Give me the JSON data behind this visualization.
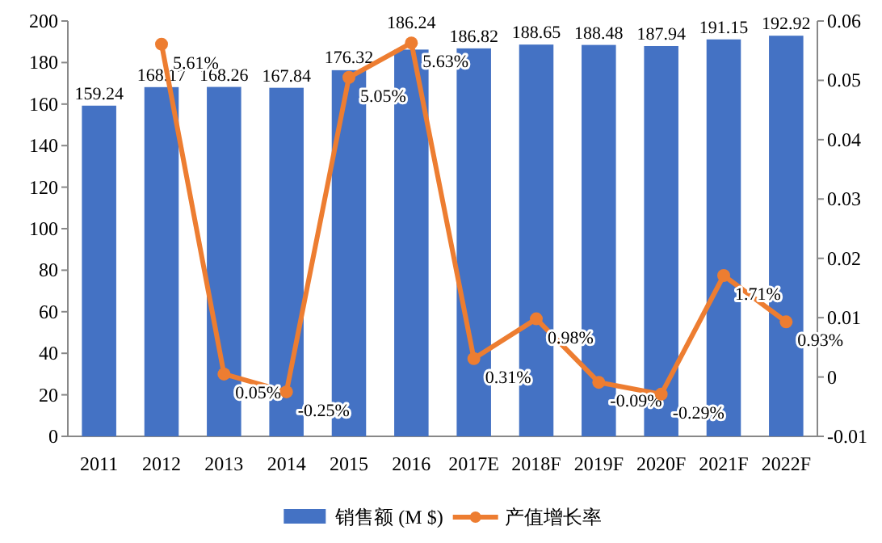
{
  "chart_data": {
    "type": "bar",
    "categories": [
      "2011",
      "2012",
      "2013",
      "2014",
      "2015",
      "2016",
      "2017E",
      "2018F",
      "2019F",
      "2020F",
      "2021F",
      "2022F"
    ],
    "series": [
      {
        "name": "销售额 (M $)",
        "color": "#4472c4",
        "values": [
          159.24,
          168.17,
          168.26,
          167.84,
          176.32,
          186.24,
          186.82,
          188.65,
          188.48,
          187.94,
          191.15,
          192.92
        ],
        "value_labels": [
          "159.24",
          "168.17",
          "168.26",
          "167.84",
          "176.32",
          "186.24",
          "186.82",
          "188.65",
          "188.48",
          "187.94",
          "191.15",
          "192.92"
        ]
      },
      {
        "name": "产值增长率",
        "type": "line",
        "axis": "y2",
        "color": "#ed7d31",
        "marker": "circle",
        "values": [
          null,
          0.0561,
          0.0005,
          -0.0025,
          0.0505,
          0.0563,
          0.0031,
          0.0098,
          -0.0009,
          -0.0029,
          0.0171,
          0.0093
        ],
        "value_labels": [
          null,
          "5.61%",
          "0.05%",
          "-0.25%",
          "5.05%",
          "5.63%",
          "0.31%",
          "0.98%",
          "-0.09%",
          "-0.29%",
          "1.71%",
          "0.93%"
        ]
      }
    ],
    "ylim": [
      0,
      200
    ],
    "yticks": [
      0,
      20,
      40,
      60,
      80,
      100,
      120,
      140,
      160,
      180,
      200
    ],
    "y2lim": [
      -0.01,
      0.06
    ],
    "y2ticks": [
      -0.01,
      0,
      0.01,
      0.02,
      0.03,
      0.04,
      0.05,
      0.06
    ],
    "legend": "bottom"
  }
}
